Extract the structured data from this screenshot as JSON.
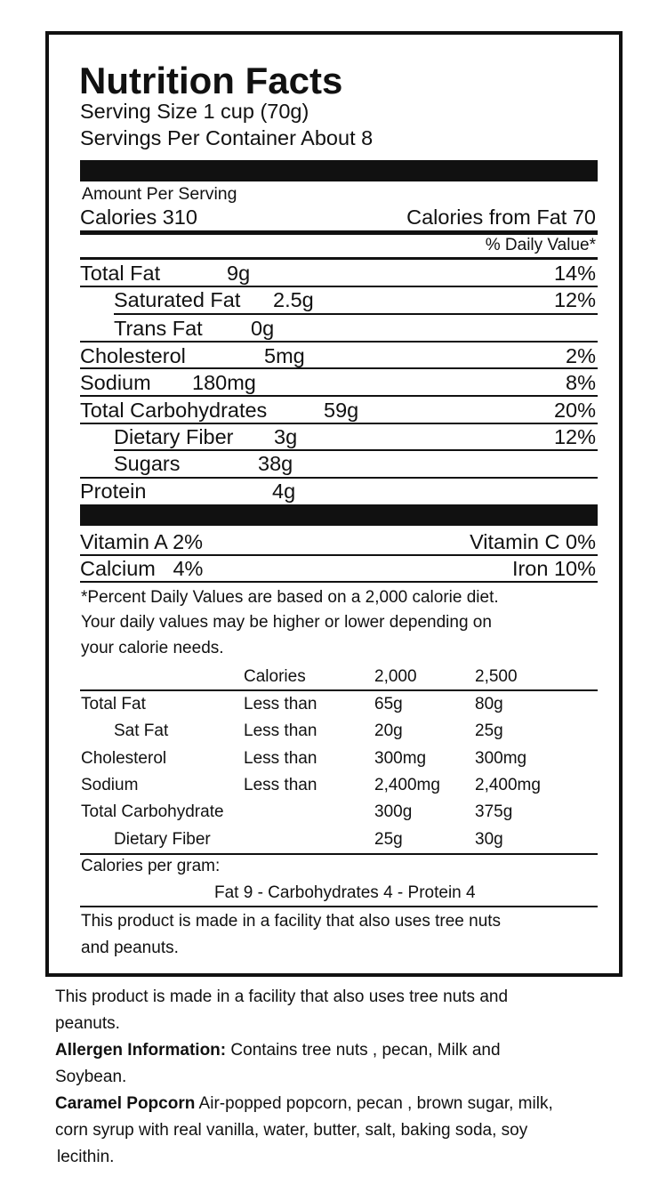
{
  "label": {
    "title": "Nutrition Facts",
    "serving_size": "Serving Size 1 cup (70g)",
    "servings_per_container": "Servings Per Container About 8",
    "amount_per_serving": "Amount Per Serving",
    "calories": "Calories 310",
    "calories_from_fat": "Calories from Fat 70",
    "daily_value_header": "% Daily Value*",
    "nutrients": [
      {
        "name": "Total Fat",
        "amount": "9g",
        "dv": "14%"
      },
      {
        "name": "Saturated Fat",
        "amount": "2.5g",
        "dv": "12%"
      },
      {
        "name": "Trans Fat",
        "amount": "0g",
        "dv": ""
      },
      {
        "name": "Cholesterol",
        "amount": "5mg",
        "dv": "2%"
      },
      {
        "name": "Sodium",
        "amount": "180mg",
        "dv": "8%"
      },
      {
        "name": "Total Carbohydrates",
        "amount": "59g",
        "dv": "20%"
      },
      {
        "name": "Dietary Fiber",
        "amount": "3g",
        "dv": "12%"
      },
      {
        "name": "Sugars",
        "amount": "38g",
        "dv": ""
      },
      {
        "name": "Protein",
        "amount": "4g",
        "dv": ""
      }
    ],
    "vitamins": {
      "vitamin_a": "Vitamin A 2%",
      "vitamin_c": "Vitamin C 0%",
      "calcium": "Calcium   4%",
      "iron": "Iron 10%"
    },
    "footnote": [
      "*Percent Daily Values are based on a 2,000 calorie diet.",
      "Your daily values may be higher or lower depending on",
      "your calorie needs."
    ],
    "reference_table": {
      "header": [
        "",
        "Calories",
        "2,000",
        "2,500"
      ],
      "rows": [
        [
          "Total Fat",
          "Less than",
          "65g",
          "80g"
        ],
        [
          "Sat Fat",
          "Less than",
          "20g",
          "25g"
        ],
        [
          "Cholesterol",
          "Less than",
          "300mg",
          "300mg"
        ],
        [
          "Sodium",
          "Less than",
          "2,400mg",
          "2,400mg"
        ],
        [
          "Total Carbohydrate",
          "",
          "300g",
          "375g"
        ],
        [
          "Dietary Fiber",
          "",
          "25g",
          "30g"
        ]
      ]
    },
    "calories_per_gram": "Calories per gram:",
    "calories_per_gram_values": "Fat 9 - Carbohydrates 4 - Protein 4",
    "facility_note": [
      "This product is made in a facility that also uses tree nuts",
      "and peanuts."
    ]
  },
  "below": {
    "facility_note": [
      "This product is made in a facility that also uses tree nuts and",
      "peanuts."
    ],
    "allergen_label": "Allergen Information:",
    "allergen_text": " Contains tree nuts , pecan, Milk and",
    "allergen_text2": "Soybean.",
    "product_label": "Caramel Popcorn",
    "ingredients1": " Air-popped popcorn, pecan , brown sugar, milk,",
    "ingredients2": "corn syrup with real vanilla, water, butter, salt, baking soda, soy",
    "ingredients3": "lecithin."
  }
}
